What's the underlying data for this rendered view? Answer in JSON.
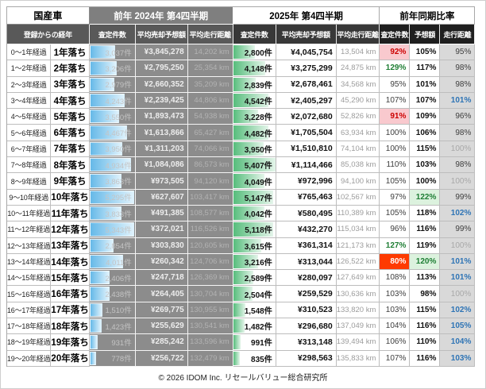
{
  "page": {
    "footer": "© 2026 IDOM Inc. リセールバリュー総合研究所"
  },
  "colors": {
    "bar_blue": "#66b9e8",
    "bar_green": "#57bd7c",
    "highlight_pink_bg": "#f9c9ce",
    "highlight_red_bg": "#fe3a00",
    "highlight_green_bg": "#dcf2de",
    "ratio_green_text": "#1e7e34",
    "ratio_red_text": "#cc0000",
    "ratio_blue_text": "#2e74b5"
  },
  "chart_data": {
    "type": "table",
    "headers": {
      "category": "国産車",
      "prev_period": "前年 2024年 第4四半期",
      "curr_period": "2025年 第4四半期",
      "ratio_title": "前年同期比率",
      "age_col": "登録からの経年",
      "prev_cols": {
        "count": "査定件数",
        "price": "平均売却予想額",
        "mileage": "平均走行距離"
      },
      "curr_cols": {
        "count": "査定件数",
        "price": "平均売却予想額",
        "mileage": "平均走行距離"
      },
      "ratio_cols": {
        "count": "査定件数",
        "price": "予想額",
        "mileage": "走行距離"
      }
    },
    "rows": [
      {
        "age_range": "0〜1年経過",
        "age_label": "1年落ち",
        "prev": {
          "count": "3,037件",
          "price": "¥3,845,278",
          "mileage": "14,202 km"
        },
        "curr": {
          "count": "2,800件",
          "price": "¥4,045,754",
          "mileage": "13,504 km"
        },
        "ratio": {
          "count": "92%",
          "count_style": "pink",
          "price": "105%",
          "price_style": "",
          "mileage": "95%",
          "mileage_style": ""
        }
      },
      {
        "age_range": "1〜2年経過",
        "age_label": "2年落ち",
        "prev": {
          "count": "3,206件",
          "price": "¥2,795,250",
          "mileage": "25,354 km"
        },
        "curr": {
          "count": "4,148件",
          "price": "¥3,275,299",
          "mileage": "24,875 km"
        },
        "ratio": {
          "count": "129%",
          "count_style": "greentext",
          "price": "117%",
          "price_style": "",
          "mileage": "98%",
          "mileage_style": ""
        }
      },
      {
        "age_range": "2〜3年経過",
        "age_label": "3年落ち",
        "prev": {
          "count": "2,979件",
          "price": "¥2,660,352",
          "mileage": "35,209 km"
        },
        "curr": {
          "count": "2,839件",
          "price": "¥2,678,461",
          "mileage": "34,568 km"
        },
        "ratio": {
          "count": "95%",
          "count_style": "",
          "price": "101%",
          "price_style": "",
          "mileage": "98%",
          "mileage_style": ""
        }
      },
      {
        "age_range": "3〜4年経過",
        "age_label": "4年落ち",
        "prev": {
          "count": "4,243件",
          "price": "¥2,239,425",
          "mileage": "44,806 km"
        },
        "curr": {
          "count": "4,542件",
          "price": "¥2,405,297",
          "mileage": "45,290 km"
        },
        "ratio": {
          "count": "107%",
          "count_style": "",
          "price": "107%",
          "price_style": "",
          "mileage": "101%",
          "mileage_style": "blue"
        }
      },
      {
        "age_range": "4〜5年経過",
        "age_label": "5年落ち",
        "prev": {
          "count": "3,550件",
          "price": "¥1,893,473",
          "mileage": "54,938 km"
        },
        "curr": {
          "count": "3,228件",
          "price": "¥2,072,680",
          "mileage": "52,826 km"
        },
        "ratio": {
          "count": "91%",
          "count_style": "pink",
          "price": "109%",
          "price_style": "",
          "mileage": "96%",
          "mileage_style": ""
        }
      },
      {
        "age_range": "5〜6年経過",
        "age_label": "6年落ち",
        "prev": {
          "count": "4,467件",
          "price": "¥1,613,866",
          "mileage": "65,427 km"
        },
        "curr": {
          "count": "4,482件",
          "price": "¥1,705,504",
          "mileage": "63,934 km"
        },
        "ratio": {
          "count": "100%",
          "count_style": "",
          "price": "106%",
          "price_style": "",
          "mileage": "98%",
          "mileage_style": ""
        }
      },
      {
        "age_range": "6〜7年経過",
        "age_label": "7年落ち",
        "prev": {
          "count": "3,950件",
          "price": "¥1,311,203",
          "mileage": "74,066 km"
        },
        "curr": {
          "count": "3,950件",
          "price": "¥1,510,810",
          "mileage": "74,104 km"
        },
        "ratio": {
          "count": "100%",
          "count_style": "",
          "price": "115%",
          "price_style": "",
          "mileage": "100%",
          "mileage_style": "dim"
        }
      },
      {
        "age_range": "7〜8年経過",
        "age_label": "8年落ち",
        "prev": {
          "count": "4,934件",
          "price": "¥1,084,086",
          "mileage": "86,573 km"
        },
        "curr": {
          "count": "5,407件",
          "price": "¥1,114,466",
          "mileage": "85,038 km"
        },
        "ratio": {
          "count": "110%",
          "count_style": "",
          "price": "103%",
          "price_style": "",
          "mileage": "98%",
          "mileage_style": ""
        }
      },
      {
        "age_range": "8〜9年経過",
        "age_label": "9年落ち",
        "prev": {
          "count": "3,863件",
          "price": "¥973,505",
          "mileage": "94,120 km"
        },
        "curr": {
          "count": "4,049件",
          "price": "¥972,996",
          "mileage": "94,100 km"
        },
        "ratio": {
          "count": "105%",
          "count_style": "",
          "price": "100%",
          "price_style": "",
          "mileage": "100%",
          "mileage_style": "dim"
        }
      },
      {
        "age_range": "9〜10年経過",
        "age_label": "10年落ち",
        "prev": {
          "count": "5,295件",
          "price": "¥627,607",
          "mileage": "103,417 km"
        },
        "curr": {
          "count": "5,147件",
          "price": "¥765,463",
          "mileage": "102,567 km"
        },
        "ratio": {
          "count": "97%",
          "count_style": "",
          "price": "122%",
          "price_style": "greenbg",
          "mileage": "99%",
          "mileage_style": ""
        }
      },
      {
        "age_range": "10〜11年経過",
        "age_label": "11年落ち",
        "prev": {
          "count": "3,833件",
          "price": "¥491,385",
          "mileage": "108,577 km"
        },
        "curr": {
          "count": "4,042件",
          "price": "¥580,495",
          "mileage": "110,389 km"
        },
        "ratio": {
          "count": "105%",
          "count_style": "",
          "price": "118%",
          "price_style": "",
          "mileage": "102%",
          "mileage_style": "blue"
        }
      },
      {
        "age_range": "11〜12年経過",
        "age_label": "12年落ち",
        "prev": {
          "count": "5,343件",
          "price": "¥372,021",
          "mileage": "116,526 km"
        },
        "curr": {
          "count": "5,118件",
          "price": "¥432,270",
          "mileage": "115,034 km"
        },
        "ratio": {
          "count": "96%",
          "count_style": "",
          "price": "116%",
          "price_style": "",
          "mileage": "99%",
          "mileage_style": ""
        }
      },
      {
        "age_range": "12〜13年経過",
        "age_label": "13年落ち",
        "prev": {
          "count": "2,854件",
          "price": "¥303,830",
          "mileage": "120,605 km"
        },
        "curr": {
          "count": "3,615件",
          "price": "¥361,314",
          "mileage": "121,173 km"
        },
        "ratio": {
          "count": "127%",
          "count_style": "greentext",
          "price": "119%",
          "price_style": "",
          "mileage": "100%",
          "mileage_style": "dim"
        }
      },
      {
        "age_range": "13〜14年経過",
        "age_label": "14年落ち",
        "prev": {
          "count": "4,011件",
          "price": "¥260,342",
          "mileage": "124,706 km"
        },
        "curr": {
          "count": "3,216件",
          "price": "¥313,044",
          "mileage": "126,522 km"
        },
        "ratio": {
          "count": "80%",
          "count_style": "red",
          "price": "120%",
          "price_style": "greenbg",
          "mileage": "101%",
          "mileage_style": "blue"
        }
      },
      {
        "age_range": "14〜15年経過",
        "age_label": "15年落ち",
        "prev": {
          "count": "2,406件",
          "price": "¥247,718",
          "mileage": "126,369 km"
        },
        "curr": {
          "count": "2,589件",
          "price": "¥280,097",
          "mileage": "127,649 km"
        },
        "ratio": {
          "count": "108%",
          "count_style": "",
          "price": "113%",
          "price_style": "",
          "mileage": "101%",
          "mileage_style": "blue"
        }
      },
      {
        "age_range": "15〜16年経過",
        "age_label": "16年落ち",
        "prev": {
          "count": "2,438件",
          "price": "¥264,405",
          "mileage": "130,704 km"
        },
        "curr": {
          "count": "2,504件",
          "price": "¥259,529",
          "mileage": "130,636 km"
        },
        "ratio": {
          "count": "103%",
          "count_style": "",
          "price": "98%",
          "price_style": "",
          "mileage": "100%",
          "mileage_style": "dim"
        }
      },
      {
        "age_range": "16〜17年経過",
        "age_label": "17年落ち",
        "prev": {
          "count": "1,510件",
          "price": "¥269,775",
          "mileage": "130,955 km"
        },
        "curr": {
          "count": "1,548件",
          "price": "¥310,523",
          "mileage": "133,820 km"
        },
        "ratio": {
          "count": "103%",
          "count_style": "",
          "price": "115%",
          "price_style": "",
          "mileage": "102%",
          "mileage_style": "blue"
        }
      },
      {
        "age_range": "17〜18年経過",
        "age_label": "18年落ち",
        "prev": {
          "count": "1,423件",
          "price": "¥255,629",
          "mileage": "130,541 km"
        },
        "curr": {
          "count": "1,482件",
          "price": "¥296,680",
          "mileage": "137,049 km"
        },
        "ratio": {
          "count": "104%",
          "count_style": "",
          "price": "116%",
          "price_style": "",
          "mileage": "105%",
          "mileage_style": "blue"
        }
      },
      {
        "age_range": "18〜19年経過",
        "age_label": "19年落ち",
        "prev": {
          "count": "931件",
          "price": "¥285,242",
          "mileage": "133,596 km"
        },
        "curr": {
          "count": "991件",
          "price": "¥313,148",
          "mileage": "139,494 km"
        },
        "ratio": {
          "count": "106%",
          "count_style": "",
          "price": "110%",
          "price_style": "",
          "mileage": "104%",
          "mileage_style": "blue"
        }
      },
      {
        "age_range": "19〜20年経過",
        "age_label": "20年落ち",
        "prev": {
          "count": "778件",
          "price": "¥256,722",
          "mileage": "132,479 km"
        },
        "curr": {
          "count": "835件",
          "price": "¥298,563",
          "mileage": "135,833 km"
        },
        "ratio": {
          "count": "107%",
          "count_style": "",
          "price": "116%",
          "price_style": "",
          "mileage": "103%",
          "mileage_style": "blue"
        }
      }
    ]
  }
}
